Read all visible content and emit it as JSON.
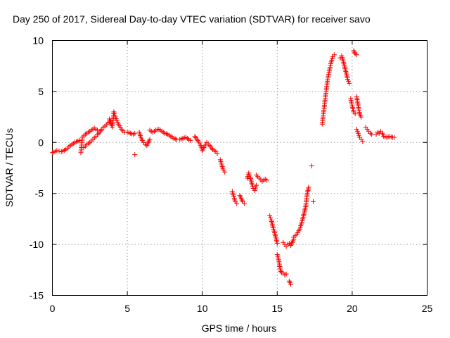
{
  "chart_data": {
    "type": "scatter",
    "title": "Day 250 of 2017, Sidereal Day-to-day VTEC variation (SDTVAR) for receiver savo",
    "xlabel": "GPS time / hours",
    "ylabel": "SDTVAR / TECUs",
    "xlim": [
      0,
      25
    ],
    "ylim": [
      -15,
      10
    ],
    "xticks": [
      0,
      5,
      10,
      15,
      20,
      25
    ],
    "yticks": [
      -15,
      -10,
      -5,
      0,
      5,
      10
    ],
    "grid": true,
    "marker": "+",
    "marker_color": "#ff0000",
    "segments": [
      {
        "x": [
          0.0,
          0.3,
          0.6,
          0.9,
          1.2,
          1.5,
          1.8
        ],
        "y": [
          -1.0,
          -0.8,
          -0.9,
          -0.7,
          -0.3,
          0.0,
          0.2
        ]
      },
      {
        "x": [
          1.9,
          2.0,
          2.2,
          2.4,
          2.6,
          2.8,
          3.0
        ],
        "y": [
          -1.0,
          0.5,
          0.8,
          1.0,
          1.2,
          1.4,
          1.2
        ]
      },
      {
        "x": [
          2.1,
          2.3,
          2.5,
          2.7,
          2.9,
          3.1,
          3.3,
          3.5,
          3.7,
          3.9
        ],
        "y": [
          -0.5,
          -0.2,
          0.0,
          0.3,
          0.6,
          0.9,
          1.3,
          1.6,
          1.9,
          2.1
        ]
      },
      {
        "x": [
          3.8,
          4.0,
          4.1,
          4.2,
          4.4,
          4.6,
          4.8,
          5.0,
          5.2,
          5.4,
          5.5
        ],
        "y": [
          2.3,
          1.5,
          3.0,
          2.5,
          1.8,
          1.3,
          1.0,
          1.0,
          0.9,
          0.8,
          0.9
        ]
      },
      {
        "x": [
          5.5
        ],
        "y": [
          -1.2
        ]
      },
      {
        "x": [
          5.8,
          5.9,
          6.0,
          6.1,
          6.2,
          6.3,
          6.4,
          6.5
        ],
        "y": [
          1.0,
          0.5,
          0.2,
          0.0,
          -0.2,
          -0.3,
          0.0,
          0.3
        ]
      },
      {
        "x": [
          6.5,
          6.7,
          6.9,
          7.1,
          7.3,
          7.5,
          7.7,
          7.9,
          8.1,
          8.3,
          8.5,
          8.7,
          8.9,
          9.1,
          9.2
        ],
        "y": [
          1.2,
          1.0,
          1.2,
          1.3,
          1.1,
          0.9,
          0.8,
          0.6,
          0.4,
          0.3,
          0.3,
          0.4,
          0.5,
          0.3,
          0.2
        ]
      },
      {
        "x": [
          9.5,
          9.7,
          9.9,
          10.0,
          10.1,
          10.3,
          10.5,
          10.7,
          10.9,
          11.0
        ],
        "y": [
          0.6,
          0.2,
          -0.3,
          -0.8,
          -0.5,
          0.0,
          -0.3,
          -0.7,
          -0.9,
          -1.1
        ]
      },
      {
        "x": [
          11.2,
          11.3,
          11.4,
          11.5
        ],
        "y": [
          -1.7,
          -2.2,
          -2.7,
          -2.9
        ]
      },
      {
        "x": [
          12.0,
          12.1,
          12.2,
          12.3
        ],
        "y": [
          -4.8,
          -5.3,
          -5.8,
          -6.0
        ]
      },
      {
        "x": [
          12.5,
          12.6,
          12.7,
          12.8
        ],
        "y": [
          -5.2,
          -5.5,
          -5.8,
          -6.0
        ]
      },
      {
        "x": [
          13.0,
          13.1,
          13.2,
          13.3,
          13.4,
          13.5,
          13.6
        ],
        "y": [
          -3.5,
          -3.0,
          -3.4,
          -4.0,
          -4.5,
          -4.7,
          -4.2
        ]
      },
      {
        "x": [
          13.6,
          13.8,
          14.0,
          14.2,
          14.3
        ],
        "y": [
          -3.2,
          -3.5,
          -3.8,
          -3.6,
          -3.7
        ]
      },
      {
        "x": [
          14.5,
          14.6,
          14.7,
          14.8,
          14.9,
          15.0
        ],
        "y": [
          -7.2,
          -7.6,
          -8.2,
          -8.7,
          -9.3,
          -9.9
        ]
      },
      {
        "x": [
          15.0,
          15.1,
          15.2,
          15.3
        ],
        "y": [
          -11.0,
          -11.5,
          -12.5,
          -12.8
        ]
      },
      {
        "x": [
          15.4,
          15.5,
          15.6
        ],
        "y": [
          -12.8,
          -13.0,
          -12.9
        ]
      },
      {
        "x": [
          15.4,
          15.5,
          15.6,
          15.7,
          15.8,
          15.9,
          16.0,
          16.1
        ],
        "y": [
          -9.8,
          -10.0,
          -10.2,
          -10.0,
          -9.9,
          -10.1,
          -9.8,
          -9.5
        ]
      },
      {
        "x": [
          15.8,
          15.9
        ],
        "y": [
          -13.6,
          -13.9
        ]
      },
      {
        "x": [
          16.1,
          16.3,
          16.5,
          16.7,
          16.9,
          17.0,
          17.1
        ],
        "y": [
          -9.3,
          -9.0,
          -8.5,
          -7.5,
          -6.3,
          -5.0,
          -4.4
        ]
      },
      {
        "x": [
          17.3
        ],
        "y": [
          -2.3
        ]
      },
      {
        "x": [
          17.4
        ],
        "y": [
          -5.8
        ]
      },
      {
        "x": [
          18.0,
          18.1,
          18.2,
          18.3,
          18.4,
          18.5,
          18.6,
          18.7,
          18.8
        ],
        "y": [
          1.8,
          3.0,
          4.3,
          5.5,
          6.5,
          7.2,
          7.9,
          8.4,
          8.6
        ]
      },
      {
        "x": [
          19.2,
          19.3,
          19.4,
          19.5,
          19.6,
          19.7,
          19.8
        ],
        "y": [
          8.3,
          8.5,
          8.0,
          7.4,
          6.8,
          6.2,
          5.8
        ]
      },
      {
        "x": [
          19.9,
          20.0,
          20.1,
          20.2
        ],
        "y": [
          4.3,
          3.6,
          3.0,
          2.8
        ]
      },
      {
        "x": [
          20.1,
          20.2,
          20.3
        ],
        "y": [
          9.0,
          8.7,
          8.6
        ]
      },
      {
        "x": [
          20.3,
          20.4,
          20.5,
          20.6
        ],
        "y": [
          4.5,
          3.6,
          2.8,
          2.5
        ]
      },
      {
        "x": [
          20.3,
          20.4,
          20.5,
          20.6,
          20.7
        ],
        "y": [
          1.3,
          0.9,
          0.5,
          0.3,
          0.1
        ]
      },
      {
        "x": [
          20.9,
          21.0,
          21.1,
          21.2,
          21.3
        ],
        "y": [
          1.5,
          1.3,
          1.1,
          0.9,
          0.8
        ]
      },
      {
        "x": [
          21.6,
          21.7,
          21.8
        ],
        "y": [
          0.8,
          1.0,
          0.9
        ]
      },
      {
        "x": [
          21.9,
          22.0,
          22.1,
          22.3,
          22.5,
          22.7,
          22.8
        ],
        "y": [
          1.1,
          0.9,
          0.6,
          0.5,
          0.6,
          0.5,
          0.5
        ]
      }
    ]
  }
}
